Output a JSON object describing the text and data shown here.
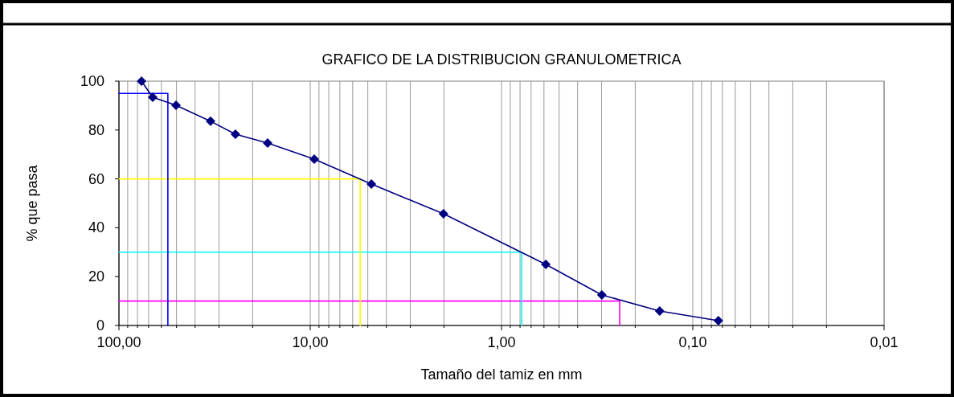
{
  "chart_data": {
    "type": "line",
    "title": "GRAFICO DE LA DISTRIBUCION GRANULOMETRICA",
    "xlabel": "Tamaño del tamiz en mm",
    "ylabel": "% que pasa",
    "log": "x",
    "grid": "x",
    "marker": "diamond",
    "line_style": "solid",
    "xlim": [
      100,
      0.01
    ],
    "ylim": [
      0,
      100
    ],
    "xticks": [
      {
        "value": 100,
        "label": "100,00"
      },
      {
        "value": 90,
        "label": null
      },
      {
        "value": 80,
        "label": null
      },
      {
        "value": 70,
        "label": null
      },
      {
        "value": 60,
        "label": null
      },
      {
        "value": 50,
        "label": null
      },
      {
        "value": 40,
        "label": null
      },
      {
        "value": 30,
        "label": null
      },
      {
        "value": 20,
        "label": null
      },
      {
        "value": 10,
        "label": "10,00"
      },
      {
        "value": 9,
        "label": null
      },
      {
        "value": 8,
        "label": null
      },
      {
        "value": 7,
        "label": null
      },
      {
        "value": 6,
        "label": null
      },
      {
        "value": 5,
        "label": null
      },
      {
        "value": 4,
        "label": null
      },
      {
        "value": 3,
        "label": null
      },
      {
        "value": 2,
        "label": null
      },
      {
        "value": 1,
        "label": "1,00"
      },
      {
        "value": 0.9,
        "label": null
      },
      {
        "value": 0.8,
        "label": null
      },
      {
        "value": 0.7,
        "label": null
      },
      {
        "value": 0.6,
        "label": null
      },
      {
        "value": 0.5,
        "label": null
      },
      {
        "value": 0.4,
        "label": null
      },
      {
        "value": 0.3,
        "label": null
      },
      {
        "value": 0.2,
        "label": null
      },
      {
        "value": 0.1,
        "label": "0,10"
      },
      {
        "value": 0.09,
        "label": null
      },
      {
        "value": 0.08,
        "label": null
      },
      {
        "value": 0.07,
        "label": null
      },
      {
        "value": 0.06,
        "label": null
      },
      {
        "value": 0.05,
        "label": null
      },
      {
        "value": 0.04,
        "label": null
      },
      {
        "value": 0.03,
        "label": null
      },
      {
        "value": 0.02,
        "label": null
      },
      {
        "value": 0.01,
        "label": "0,01"
      }
    ],
    "yticks": [
      0,
      20,
      40,
      60,
      80,
      100
    ],
    "series": [
      {
        "color": "#000080",
        "x": [
          76.2,
          66.6,
          50.3,
          33.2,
          24.6,
          16.7,
          9.53,
          4.79,
          2.01,
          0.587,
          0.299,
          0.149,
          0.0735
        ],
        "values": [
          100,
          93.4,
          90.1,
          83.6,
          78.3,
          74.7,
          68.1,
          57.9,
          45.7,
          25.0,
          12.5,
          5.9,
          2.0
        ]
      },
      {
        "color": "#0000ff",
        "marker": "none",
        "x": [
          100,
          55.5,
          55.5
        ],
        "values": [
          95,
          95,
          0
        ]
      },
      {
        "color": "#ffff00",
        "marker": "none",
        "x": [
          100,
          5.48,
          5.48
        ],
        "values": [
          60,
          60,
          0
        ]
      },
      {
        "color": "#00ffff",
        "marker": "none",
        "x": [
          100,
          0.785,
          0.785
        ],
        "values": [
          30,
          30,
          0
        ]
      },
      {
        "color": "#ff00ff",
        "marker": "none",
        "x": [
          100,
          0.241,
          0.241
        ],
        "values": [
          10,
          10,
          0
        ]
      }
    ]
  }
}
